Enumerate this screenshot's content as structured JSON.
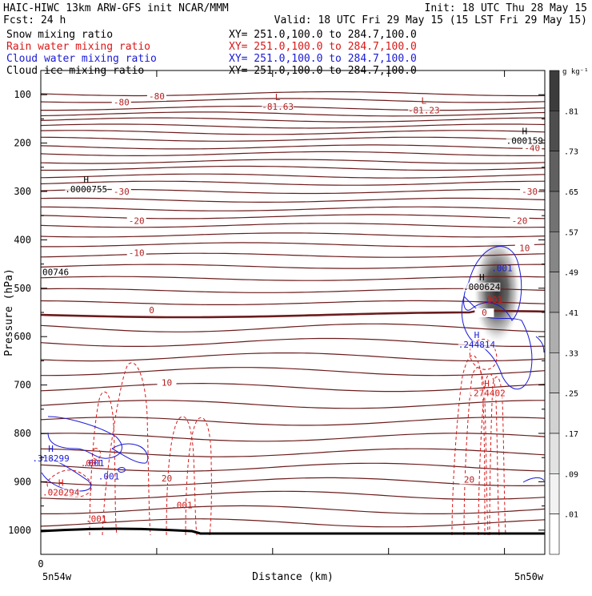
{
  "header": {
    "title_left": "HAIC-HIWC 13km ARW-GFS init    NCAR/MMM",
    "init": "Init: 18 UTC Thu 28 May 15",
    "fcst": "Fcst:   24 h",
    "valid": "Valid: 18 UTC Fri 29 May 15 (15 LST Fri 29 May 15)",
    "fields": [
      {
        "name": "Snow mixing ratio",
        "xy": "XY= 251.0,100.0 to 284.7,100.0",
        "color": "#000000"
      },
      {
        "name": "Rain water mixing ratio",
        "xy": "XY= 251.0,100.0 to 284.7,100.0",
        "color": "#d81818"
      },
      {
        "name": "Cloud water mixing ratio",
        "xy": "XY= 251.0,100.0 to 284.7,100.0",
        "color": "#1a1ad6"
      },
      {
        "name": "Cloud ice mixing ratio",
        "xy": "XY= 251.0,100.0 to 284.7,100.0",
        "color": "#000000"
      }
    ]
  },
  "chart_data": {
    "type": "contour-cross-section",
    "ylabel": "Pressure (hPa)",
    "xlabel": "Distance (km)",
    "y_ticks": [
      100,
      200,
      300,
      400,
      500,
      600,
      700,
      800,
      900,
      1000
    ],
    "ylim": [
      50,
      1050
    ],
    "x_tick_first_label": "0",
    "x_left_label": "5n54w",
    "x_right_label": "5n50w",
    "colorbar": {
      "unit": "g kg⁻¹",
      "levels": [
        ".01",
        ".09",
        ".17",
        ".25",
        ".33",
        ".41",
        ".49",
        ".57",
        ".65",
        ".73",
        ".81"
      ],
      "colors": [
        "#ffffff",
        "#f2f2f2",
        "#e2e2e2",
        "#d2d2d2",
        "#c0c0c0",
        "#aeaeae",
        "#9a9a9a",
        "#868686",
        "#727272",
        "#606060",
        "#4e4e4e",
        "#3c3c3c"
      ]
    },
    "temperature_label_color": "#b22222",
    "temperature_line_color": "#6b1c1c",
    "temperature_labels": [
      {
        "text": "-80",
        "p": 120,
        "dist": 0.16
      },
      {
        "text": "-80",
        "p": 108,
        "dist": 0.23
      },
      {
        "text": "-40",
        "p": 215,
        "dist": 0.975
      },
      {
        "text": "-30",
        "p": 305,
        "dist": 0.16
      },
      {
        "text": "-30",
        "p": 305,
        "dist": 0.97
      },
      {
        "text": "-20",
        "p": 365,
        "dist": 0.19
      },
      {
        "text": "-20",
        "p": 365,
        "dist": 0.95
      },
      {
        "text": "-10",
        "p": 432,
        "dist": 0.19
      },
      {
        "text": "10",
        "p": 422,
        "dist": 0.96
      },
      {
        "text": "0",
        "p": 550,
        "dist": 0.22
      },
      {
        "text": "0",
        "p": 555,
        "dist": 0.88
      },
      {
        "text": "10",
        "p": 700,
        "dist": 0.25
      },
      {
        "text": "20",
        "p": 898,
        "dist": 0.25
      },
      {
        "text": "20",
        "p": 900,
        "dist": 0.85
      }
    ],
    "extrema": [
      {
        "kind": "L",
        "value": "-81.63",
        "p": 118,
        "dist": 0.47,
        "color": "#b22222"
      },
      {
        "kind": "L",
        "value": "-81.23",
        "p": 125,
        "dist": 0.76,
        "color": "#b22222"
      },
      {
        "kind": "H",
        "value": ".000159",
        "p": 188,
        "dist": 0.96,
        "color": "#000000"
      },
      {
        "kind": "H",
        "value": ".0000755",
        "p": 288,
        "dist": 0.09,
        "color": "#000000"
      },
      {
        "kind": "H",
        "value": ".000624",
        "p": 490,
        "dist": 0.875,
        "color": "#000000"
      },
      {
        "kind": "H",
        "value": ".244814",
        "p": 610,
        "dist": 0.865,
        "color": "#1a1ad6"
      },
      {
        "kind": "H",
        "value": ".274402",
        "p": 710,
        "dist": 0.885,
        "color": "#d81818"
      },
      {
        "kind": "H",
        "value": ".318299",
        "p": 845,
        "dist": 0.02,
        "color": "#1a1ad6"
      },
      {
        "kind": "H",
        "value": ".020294",
        "p": 915,
        "dist": 0.04,
        "color": "#d81818"
      }
    ],
    "contour_labels": [
      {
        "text": "00746",
        "p": 473,
        "dist": 0.0,
        "color": "#000000"
      },
      {
        "text": ".001",
        "p": 465,
        "dist": 0.915,
        "color": "#1a1ad6"
      },
      {
        "text": ".001",
        "p": 530,
        "dist": 0.895,
        "color": "#d81818"
      },
      {
        "text": ".001",
        "p": 868,
        "dist": 0.105,
        "color": "#1a1ad6"
      },
      {
        "text": ".001",
        "p": 868,
        "dist": 0.1,
        "color": "#d81818"
      },
      {
        "text": ".001",
        "p": 895,
        "dist": 0.135,
        "color": "#1a1ad6"
      },
      {
        "text": ".001",
        "p": 955,
        "dist": 0.28,
        "color": "#d81818"
      },
      {
        "text": ".001",
        "p": 983,
        "dist": 0.11,
        "color": "#d81818"
      }
    ]
  }
}
